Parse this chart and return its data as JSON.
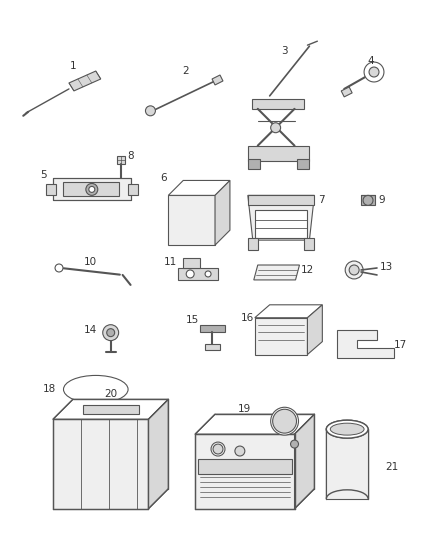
{
  "bg_color": "#ffffff",
  "fig_width": 4.38,
  "fig_height": 5.33,
  "dpi": 100,
  "line_color": "#555555",
  "label_color": "#333333",
  "label_fontsize": 7.5,
  "fc_light": "#efefef",
  "fc_mid": "#d8d8d8",
  "fc_dark": "#b0b0b0",
  "fc_white": "#ffffff"
}
